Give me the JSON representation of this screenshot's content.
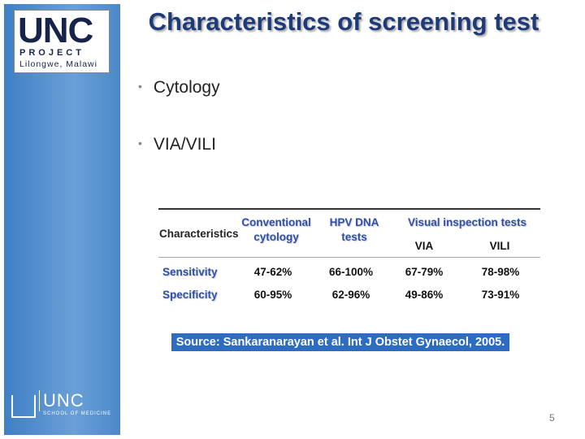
{
  "logo": {
    "name": "UNC",
    "subtitle": "PROJECT",
    "location": "Lilongwe, Malawi"
  },
  "title": "Characteristics of screening test",
  "bullets": [
    "Cytology",
    "VIA/VILI"
  ],
  "table": {
    "header": {
      "label": "Characteristics",
      "conventional": "Conventional cytology",
      "hpv": "HPV DNA tests",
      "visual": "Visual inspection tests",
      "via": "VIA",
      "vili": "VILI"
    },
    "rows": [
      [
        "Sensitivity",
        "47-62%",
        "66-100%",
        "67-79%",
        "78-98%"
      ],
      [
        "Specificity",
        "60-95%",
        "62-96%",
        "49-86%",
        "73-91%"
      ]
    ]
  },
  "source": "Source: Sankaranarayan et al. Int J Obstet Gynaecol, 2005.",
  "footer_logo": {
    "name": "UNC",
    "subtitle": "SCHOOL OF MEDICINE"
  },
  "page_number": "5"
}
